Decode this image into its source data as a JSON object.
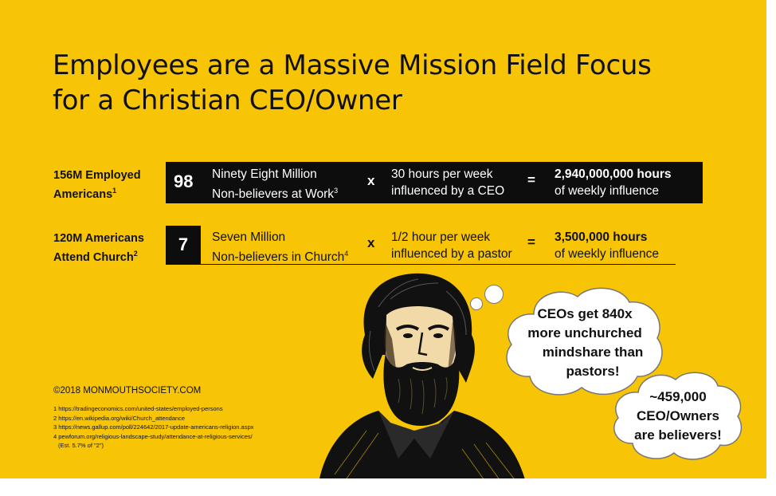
{
  "title": {
    "line1": "Employees are a Massive Mission Field Focus",
    "line2": "for a Christian CEO/Owner"
  },
  "rows": [
    {
      "label_line1": "156M Employed",
      "label_line2": "Americans",
      "label_sup": "1",
      "number": "98",
      "desc_line1": "Ninety Eight Million",
      "desc_line2": "Non-believers at Work",
      "desc_sup": "3",
      "times": "x",
      "hours_line1": "30 hours per week",
      "hours_line2": "influenced by a CEO",
      "equals": "=",
      "result_line1": "2,940,000,000 hours",
      "result_line2": "of weekly influence"
    },
    {
      "label_line1": "120M Americans",
      "label_line2": "Attend Church",
      "label_sup": "2",
      "number": "7",
      "desc_line1": "Seven Million",
      "desc_line2": "Non-believers in Church",
      "desc_sup": "4",
      "times": "x",
      "hours_line1": "1/2 hour per week",
      "hours_line2": "influenced by a pastor",
      "equals": "=",
      "result_line1": "3,500,000 hours",
      "result_line2": "of weekly influence"
    }
  ],
  "bubbles": [
    {
      "line1": "CEOs get 840x",
      "line2": "more unchurched",
      "line3": "mindshare than",
      "line4": "pastors!"
    },
    {
      "line1": "~459,000",
      "line2": "CEO/Owners",
      "line3": "are believers!"
    }
  ],
  "copyright": "©2018 MONMOUTHSOCIETY.COM",
  "footnotes": [
    "1 https://tradingeconomics.com/united-states/employed-persons",
    "2 https://en.wikipedia.org/wiki/Church_attendance",
    "3 https://news.gallup.com/poll/224642/2017-update-americans-religion.aspx",
    "4 pewforum.org/religious-landscape-study/attendance-at-religious-services/",
    "(Est. 5.7% of \"2\")"
  ],
  "colors": {
    "background": "#f7c506",
    "dark": "#0d0d0d",
    "text_on_dark": "#ffffff"
  },
  "illustration": "bearded-man-engraving"
}
